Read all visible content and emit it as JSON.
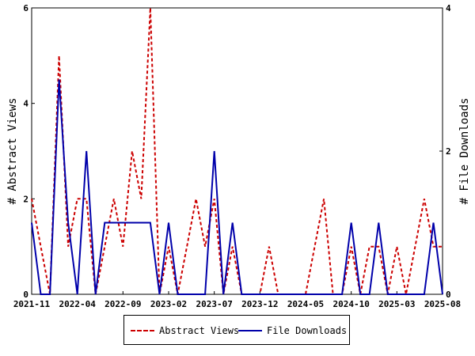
{
  "chart_data": {
    "type": "line",
    "x_tick_labels": [
      "2021-11",
      "2022-04",
      "2022-09",
      "2023-02",
      "2023-07",
      "2023-12",
      "2024-05",
      "2024-10",
      "2025-03",
      "2025-08"
    ],
    "y_left": {
      "label": "# Abstract Views",
      "ylim": [
        0,
        6
      ],
      "ticks": [
        "0",
        "2",
        "4",
        "6"
      ]
    },
    "y_right": {
      "label": "# File Downloads",
      "ylim": [
        0,
        4
      ],
      "ticks": [
        "0",
        "2",
        "4"
      ]
    },
    "x": [
      0,
      1,
      2,
      3,
      4,
      5,
      6,
      7,
      8,
      9,
      10,
      11,
      12,
      13,
      14,
      15,
      16,
      17,
      18,
      19,
      20,
      21,
      22,
      23,
      24,
      25,
      26,
      27,
      28,
      29,
      30,
      31,
      32,
      33,
      34,
      35,
      36,
      37,
      38,
      39,
      40,
      41,
      42,
      43,
      44,
      45
    ],
    "series": [
      {
        "name": "Abstract Views",
        "axis": "left",
        "color": "#cc0000",
        "style": "dashed",
        "values": [
          2,
          1,
          0,
          5,
          1,
          2,
          2,
          0,
          1,
          2,
          1,
          3,
          2,
          6,
          0,
          1,
          0,
          1,
          2,
          1,
          2,
          0,
          1,
          0,
          0,
          0,
          1,
          0,
          0,
          0,
          0,
          1,
          2,
          0,
          0,
          1,
          0,
          1,
          1,
          0,
          1,
          0,
          1,
          2,
          1,
          1
        ]
      },
      {
        "name": "File Downloads",
        "axis": "right",
        "color": "#0000aa",
        "style": "solid",
        "values": [
          1,
          0,
          0,
          3,
          1,
          0,
          2,
          0,
          1,
          1,
          1,
          1,
          1,
          1,
          0,
          1,
          0,
          0,
          0,
          0,
          2,
          0,
          1,
          0,
          0,
          0,
          0,
          0,
          0,
          0,
          0,
          0,
          0,
          0,
          0,
          1,
          0,
          0,
          1,
          0,
          0,
          0,
          0,
          0,
          1,
          0
        ]
      }
    ],
    "legend_position": "bottom",
    "grid": false
  }
}
